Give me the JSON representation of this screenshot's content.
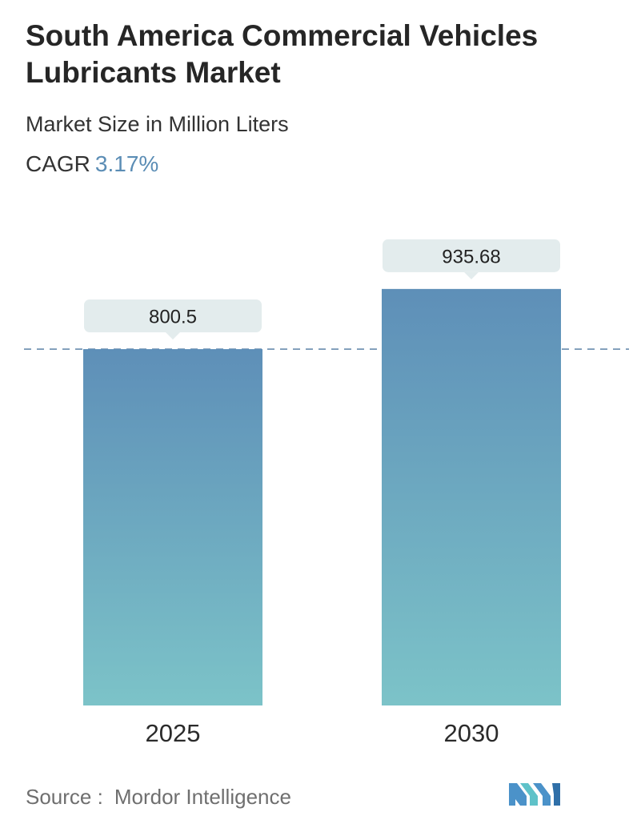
{
  "title": "South America Commercial Vehicles Lubricants Market",
  "subtitle": "Market Size in Million Liters",
  "cagr": {
    "label": "CAGR",
    "value": "3.17%"
  },
  "source": {
    "label": "Source :",
    "name": "Mordor Intelligence"
  },
  "colors": {
    "bar_top": "#5e8fb8",
    "bar_bottom": "#7cc3c8",
    "label_bg": "#e3eced",
    "dash": "#5b82a6",
    "accent": "#5b8db5"
  },
  "logo": {
    "icon": "mordor-intelligence-logo-icon"
  },
  "chart_data": {
    "type": "bar",
    "categories": [
      "2025",
      "2030"
    ],
    "values": [
      800.5,
      935.68
    ],
    "value_labels": [
      "800.5",
      "935.68"
    ],
    "reference_line": 800.5,
    "grid": false
  }
}
